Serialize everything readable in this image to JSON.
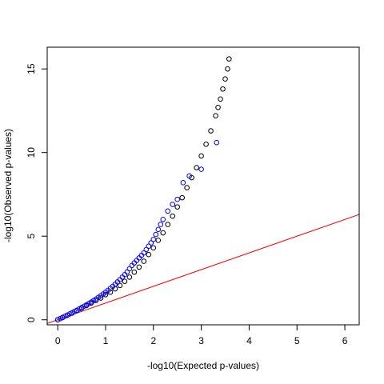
{
  "chart_data": {
    "type": "scatter",
    "title": "",
    "xlabel": "-log10(Expected p-values)",
    "ylabel": "-log10(Observed p-values)",
    "xlim": [
      -0.22,
      6.3
    ],
    "ylim": [
      -0.3,
      16.3
    ],
    "x_ticks": [
      0,
      1,
      2,
      3,
      4,
      5,
      6
    ],
    "y_ticks": [
      0,
      5,
      10,
      15
    ],
    "x_tick_labels": [
      "0",
      "1",
      "2",
      "3",
      "4",
      "5",
      "6"
    ],
    "y_tick_labels": [
      "0",
      "5",
      "10",
      "15"
    ],
    "grid": false,
    "legend": "none",
    "series": [
      {
        "marker": "open-circle",
        "color": "#000000",
        "x": [
          0.0,
          0.1,
          0.2,
          0.3,
          0.4,
          0.5,
          0.6,
          0.7,
          0.8,
          0.9,
          1.0,
          1.1,
          1.2,
          1.3,
          1.4,
          1.5,
          1.6,
          1.7,
          1.8,
          1.9,
          2.0,
          2.1,
          2.2,
          2.3,
          2.4,
          2.5,
          2.6,
          2.7,
          2.8,
          2.9,
          3.0,
          3.1,
          3.2,
          3.3,
          3.35,
          3.4,
          3.45,
          3.5,
          3.55,
          3.58
        ],
        "y": [
          0.0,
          0.13,
          0.27,
          0.4,
          0.55,
          0.7,
          0.85,
          1.0,
          1.15,
          1.3,
          1.5,
          1.65,
          1.85,
          2.05,
          2.3,
          2.55,
          2.85,
          3.15,
          3.5,
          3.9,
          4.3,
          4.75,
          5.2,
          5.7,
          6.2,
          6.75,
          7.3,
          7.9,
          8.5,
          9.1,
          9.8,
          10.5,
          11.3,
          12.2,
          12.7,
          13.2,
          13.8,
          14.4,
          15.0,
          15.6
        ]
      },
      {
        "marker": "open-circle",
        "color": "#0000ff",
        "x": [
          0.0,
          0.05,
          0.1,
          0.15,
          0.2,
          0.25,
          0.3,
          0.35,
          0.4,
          0.45,
          0.5,
          0.55,
          0.6,
          0.65,
          0.7,
          0.75,
          0.8,
          0.85,
          0.9,
          0.95,
          1.0,
          1.05,
          1.1,
          1.15,
          1.2,
          1.25,
          1.3,
          1.35,
          1.4,
          1.45,
          1.5,
          1.55,
          1.6,
          1.65,
          1.7,
          1.75,
          1.8,
          1.85,
          1.9,
          1.95,
          2.0,
          2.05,
          2.1,
          2.15,
          2.2,
          2.3,
          2.4,
          2.5,
          2.62,
          2.75,
          3.0,
          3.32
        ],
        "y": [
          0.0,
          0.07,
          0.14,
          0.21,
          0.28,
          0.35,
          0.42,
          0.5,
          0.57,
          0.65,
          0.73,
          0.81,
          0.89,
          0.97,
          1.06,
          1.15,
          1.24,
          1.34,
          1.44,
          1.54,
          1.65,
          1.76,
          1.88,
          2.0,
          2.13,
          2.26,
          2.4,
          2.55,
          2.7,
          2.86,
          3.05,
          3.25,
          3.4,
          3.55,
          3.7,
          3.85,
          4.0,
          4.2,
          4.4,
          4.6,
          4.8,
          5.1,
          5.4,
          5.7,
          6.0,
          6.5,
          6.9,
          7.2,
          8.2,
          8.6,
          9.0,
          10.6
        ]
      }
    ],
    "reference_line": {
      "color": "#ff0000",
      "intercept": 0,
      "slope": 1
    }
  }
}
